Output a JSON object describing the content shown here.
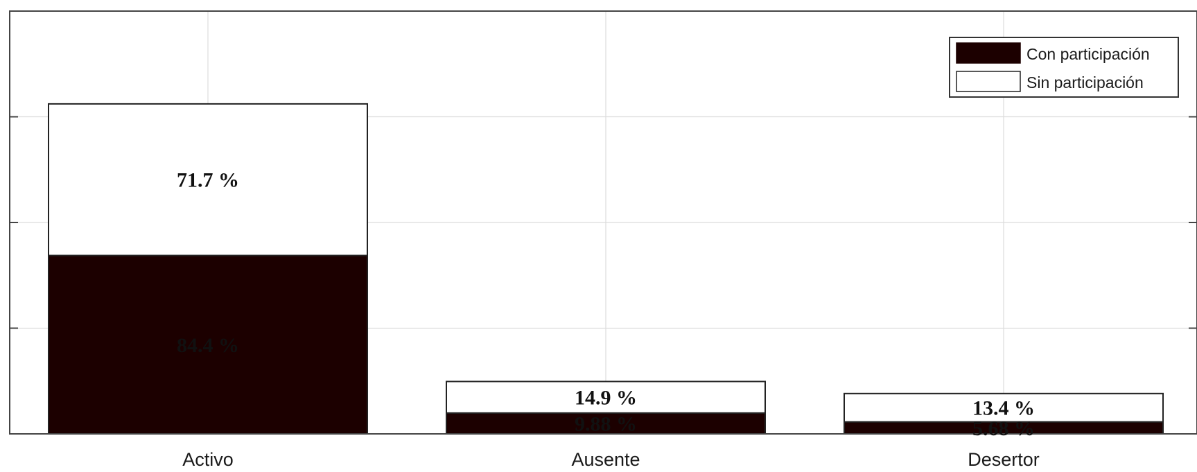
{
  "chart_data": {
    "type": "bar",
    "stacked": true,
    "categories": [
      "Activo",
      "Ausente",
      "Desertor"
    ],
    "series": [
      {
        "name": "Con participación",
        "values": [
          84.4,
          9.88,
          5.68
        ],
        "labels": [
          "84.4 %",
          "9.88 %",
          "5.68 %"
        ],
        "color": "#1c0000"
      },
      {
        "name": "Sin participación",
        "values": [
          71.7,
          14.9,
          13.4
        ],
        "labels": [
          "71.7 %",
          "14.9 %",
          "13.4 %"
        ],
        "color": "#ffffff"
      }
    ],
    "ylim": [
      0,
      200
    ],
    "grid": true,
    "legend_position": "top-right",
    "title": "",
    "xlabel": "",
    "ylabel": ""
  }
}
